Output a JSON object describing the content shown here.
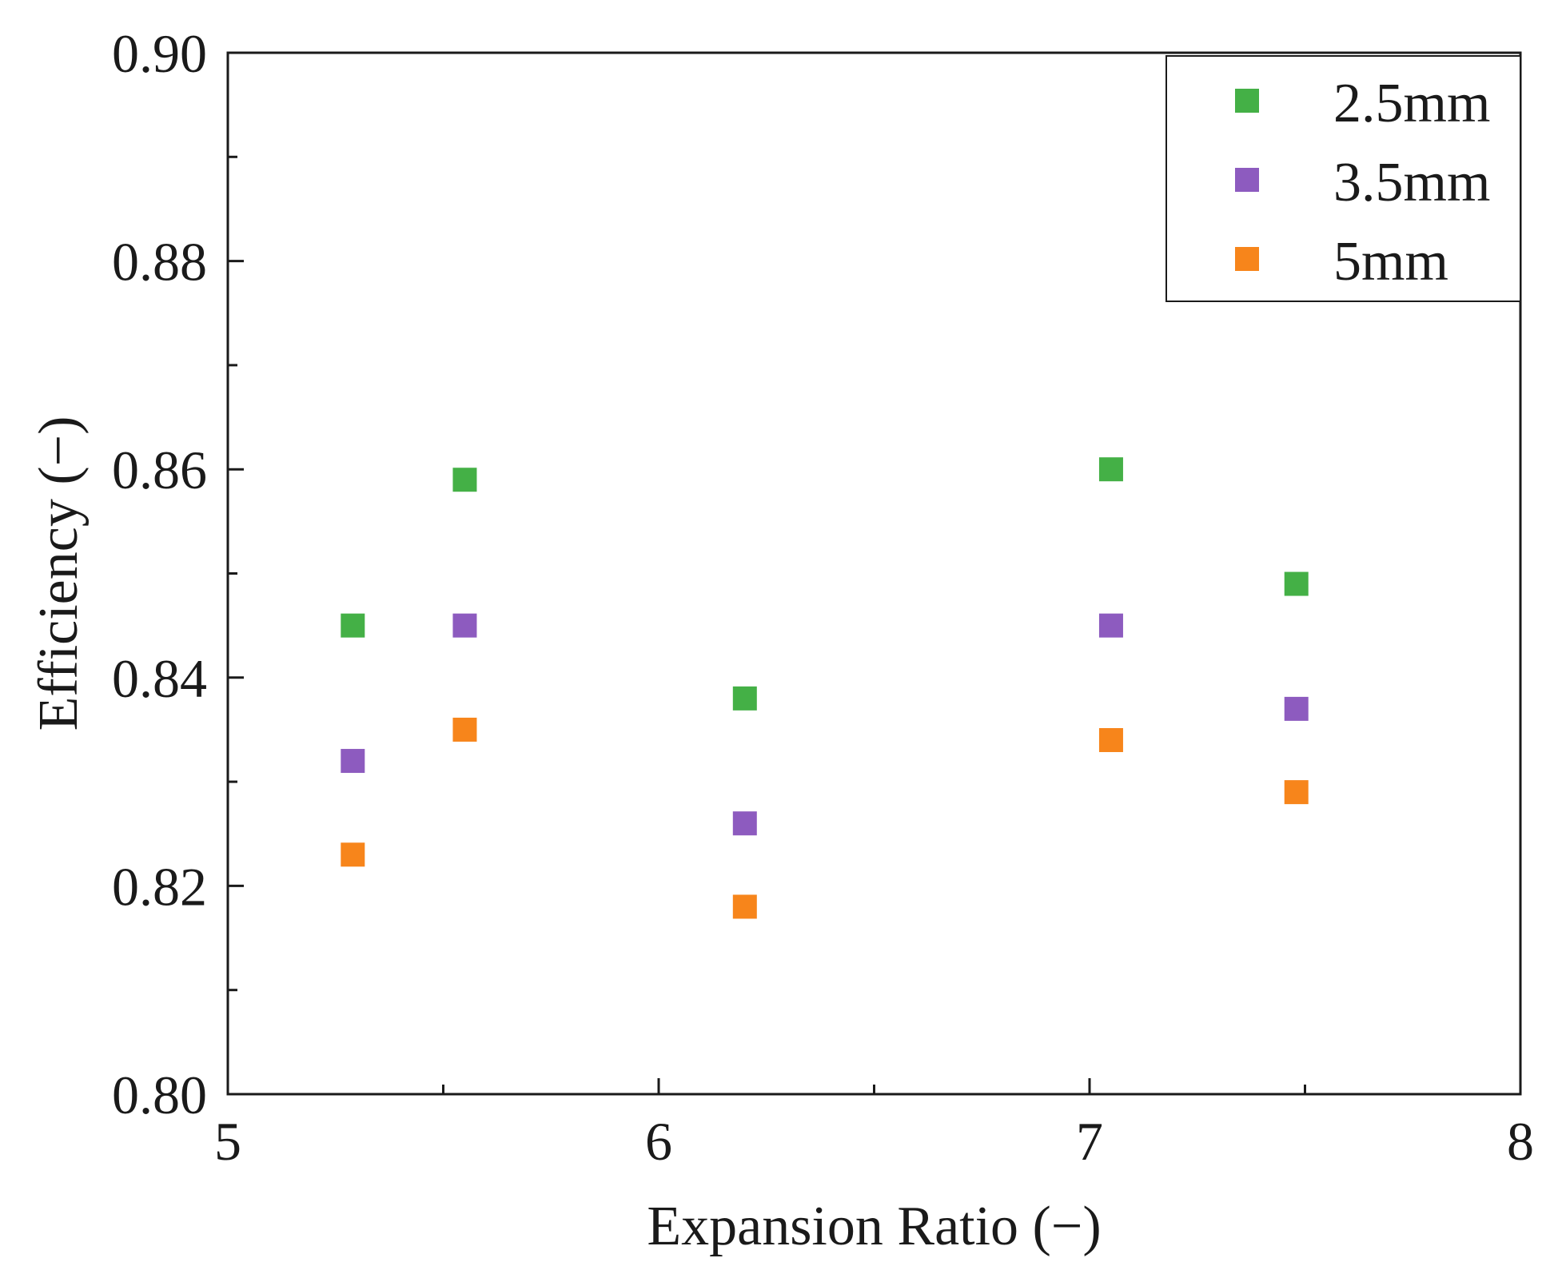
{
  "chart_data": {
    "type": "scatter",
    "xlabel": "Expansion Ratio (−)",
    "ylabel": "Efficiency (−)",
    "xlim": [
      5,
      8
    ],
    "ylim": [
      0.8,
      0.9
    ],
    "x_ticks": [
      5,
      6,
      7,
      8
    ],
    "x_tick_labels": [
      "5",
      "6",
      "7",
      "8"
    ],
    "x_minor_ticks": [
      5.5,
      6.5,
      7.5
    ],
    "y_ticks": [
      0.8,
      0.82,
      0.84,
      0.86,
      0.88,
      0.9
    ],
    "y_tick_labels": [
      "0.80",
      "0.82",
      "0.84",
      "0.86",
      "0.88",
      "0.90"
    ],
    "y_minor_ticks": [
      0.81,
      0.83,
      0.85,
      0.87,
      0.89
    ],
    "grid": false,
    "legend_position": "top-right",
    "series": [
      {
        "name": "2.5mm",
        "color": "#44b046",
        "marker": "square",
        "x": [
          5.29,
          5.55,
          6.2,
          7.05,
          7.48
        ],
        "y": [
          0.845,
          0.859,
          0.838,
          0.86,
          0.849
        ]
      },
      {
        "name": "3.5mm",
        "color": "#8d5bbf",
        "marker": "square",
        "x": [
          5.29,
          5.55,
          6.2,
          7.05,
          7.48
        ],
        "y": [
          0.832,
          0.845,
          0.826,
          0.845,
          0.837
        ]
      },
      {
        "name": "5mm",
        "color": "#f7851b",
        "marker": "square",
        "x": [
          5.29,
          5.55,
          6.2,
          7.05,
          7.48
        ],
        "y": [
          0.823,
          0.835,
          0.818,
          0.834,
          0.829
        ]
      }
    ]
  }
}
